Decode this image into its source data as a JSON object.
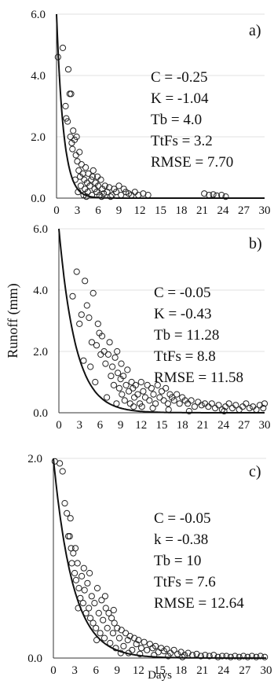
{
  "chart_data": [
    {
      "type": "scatter",
      "panel_label": "a)",
      "xlim": [
        0,
        30
      ],
      "ylim": [
        0,
        6
      ],
      "x_ticks": [
        "0",
        "3",
        "6",
        "9",
        "12",
        "15",
        "18",
        "21",
        "24",
        "27",
        "30"
      ],
      "y_ticks": [
        "0.0",
        "2.0",
        "4.0",
        "6.0"
      ],
      "ylabel": "",
      "xlabel": "",
      "annotations": [
        "C = -0.25",
        "K = -1.04",
        "Tb = 4.0",
        "TtFs = 3.2",
        "RMSE = 7.70"
      ],
      "curve": {
        "C": -0.25,
        "K": -1.04,
        "Tb": 4.0,
        "peak": 6.0
      },
      "observed_points": [
        [
          0.2,
          4.6
        ],
        [
          0.9,
          4.9
        ],
        [
          1.3,
          3.0
        ],
        [
          1.4,
          2.6
        ],
        [
          1.6,
          2.5
        ],
        [
          1.7,
          4.2
        ],
        [
          1.9,
          3.4
        ],
        [
          2.1,
          3.4
        ],
        [
          2.0,
          2.0
        ],
        [
          2.2,
          1.8
        ],
        [
          2.3,
          1.6
        ],
        [
          2.4,
          2.2
        ],
        [
          2.6,
          1.9
        ],
        [
          2.8,
          1.4
        ],
        [
          2.9,
          2.0
        ],
        [
          3.0,
          1.2
        ],
        [
          2.7,
          0.6
        ],
        [
          3.2,
          0.9
        ],
        [
          3.3,
          1.5
        ],
        [
          3.4,
          0.7
        ],
        [
          3.5,
          0.4
        ],
        [
          3.6,
          1.1
        ],
        [
          3.8,
          0.8
        ],
        [
          4.0,
          0.6
        ],
        [
          4.1,
          0.3
        ],
        [
          4.2,
          1.0
        ],
        [
          4.4,
          0.5
        ],
        [
          4.5,
          0.2
        ],
        [
          4.6,
          0.8
        ],
        [
          4.8,
          0.4
        ],
        [
          5.0,
          0.6
        ],
        [
          5.1,
          0.1
        ],
        [
          5.3,
          0.9
        ],
        [
          5.5,
          0.3
        ],
        [
          5.6,
          0.5
        ],
        [
          5.8,
          0.2
        ],
        [
          6.0,
          0.4
        ],
        [
          6.2,
          0.1
        ],
        [
          6.4,
          0.6
        ],
        [
          6.6,
          0.3
        ],
        [
          6.8,
          0.15
        ],
        [
          7.0,
          0.4
        ],
        [
          7.3,
          0.2
        ],
        [
          7.6,
          0.35
        ],
        [
          8.0,
          0.1
        ],
        [
          8.3,
          0.3
        ],
        [
          8.6,
          0.2
        ],
        [
          9.0,
          0.4
        ],
        [
          9.3,
          0.1
        ],
        [
          9.7,
          0.3
        ],
        [
          10.0,
          0.2
        ],
        [
          10.4,
          0.15
        ],
        [
          10.8,
          0.1
        ],
        [
          11.3,
          0.2
        ],
        [
          11.8,
          0.1
        ],
        [
          12.5,
          0.15
        ],
        [
          13.2,
          0.1
        ],
        [
          3.1,
          0.2
        ],
        [
          3.9,
          0.1
        ],
        [
          4.3,
          0.05
        ],
        [
          5.2,
          0.7
        ],
        [
          5.9,
          0.7
        ],
        [
          6.5,
          0.05
        ],
        [
          7.8,
          0.05
        ],
        [
          21.3,
          0.15
        ],
        [
          22.0,
          0.1
        ],
        [
          22.6,
          0.12
        ],
        [
          23.1,
          0.08
        ],
        [
          23.8,
          0.1
        ],
        [
          24.4,
          0.05
        ]
      ]
    },
    {
      "type": "scatter",
      "panel_label": "b)",
      "xlim": [
        0,
        30
      ],
      "ylim": [
        0,
        6
      ],
      "x_ticks": [
        "0",
        "3",
        "6",
        "9",
        "12",
        "15",
        "18",
        "21",
        "24",
        "27",
        "30"
      ],
      "y_ticks": [
        "0.0",
        "2.0",
        "4.0",
        "6.0"
      ],
      "ylabel": "Runoff (mm)",
      "xlabel": "",
      "annotations": [
        "C = -0.05",
        "K = -0.43",
        "Tb = 11.28",
        "TtFs = 8.8",
        "RMSE = 11.58"
      ],
      "curve": {
        "C": -0.05,
        "K": -0.43,
        "Tb": 11.28,
        "peak": 6.0
      },
      "observed_points": [
        [
          2.0,
          3.8
        ],
        [
          2.6,
          4.6
        ],
        [
          3.0,
          2.9
        ],
        [
          3.3,
          3.2
        ],
        [
          3.6,
          1.7
        ],
        [
          3.8,
          4.3
        ],
        [
          4.1,
          3.5
        ],
        [
          4.4,
          3.1
        ],
        [
          4.6,
          1.5
        ],
        [
          4.8,
          2.3
        ],
        [
          5.0,
          3.9
        ],
        [
          5.3,
          1.0
        ],
        [
          5.5,
          2.2
        ],
        [
          5.7,
          2.9
        ],
        [
          5.9,
          2.6
        ],
        [
          6.1,
          1.9
        ],
        [
          6.3,
          2.5
        ],
        [
          6.6,
          2.0
        ],
        [
          6.8,
          1.6
        ],
        [
          7.0,
          0.5
        ],
        [
          7.2,
          1.9
        ],
        [
          7.4,
          2.3
        ],
        [
          7.6,
          1.2
        ],
        [
          7.8,
          1.5
        ],
        [
          8.0,
          0.9
        ],
        [
          8.2,
          1.8
        ],
        [
          8.4,
          0.3
        ],
        [
          8.6,
          1.3
        ],
        [
          8.8,
          0.8
        ],
        [
          9.0,
          1.1
        ],
        [
          9.2,
          0.6
        ],
        [
          9.4,
          1.2
        ],
        [
          9.6,
          0.4
        ],
        [
          9.8,
          0.9
        ],
        [
          10.0,
          1.4
        ],
        [
          10.2,
          0.7
        ],
        [
          10.4,
          0.3
        ],
        [
          10.6,
          1.0
        ],
        [
          10.8,
          0.8
        ],
        [
          11.0,
          0.5
        ],
        [
          11.2,
          0.9
        ],
        [
          11.5,
          0.6
        ],
        [
          11.8,
          0.3
        ],
        [
          12.0,
          1.0
        ],
        [
          12.3,
          0.7
        ],
        [
          12.6,
          0.5
        ],
        [
          12.9,
          0.9
        ],
        [
          13.2,
          0.4
        ],
        [
          13.5,
          0.8
        ],
        [
          13.8,
          0.6
        ],
        [
          14.1,
          0.3
        ],
        [
          14.4,
          0.9
        ],
        [
          14.7,
          0.5
        ],
        [
          15.0,
          0.7
        ],
        [
          15.3,
          0.4
        ],
        [
          15.6,
          0.8
        ],
        [
          15.9,
          0.3
        ],
        [
          16.2,
          0.6
        ],
        [
          16.5,
          0.5
        ],
        [
          16.8,
          0.4
        ],
        [
          17.2,
          0.6
        ],
        [
          17.6,
          0.3
        ],
        [
          18.0,
          0.5
        ],
        [
          18.4,
          0.4
        ],
        [
          18.8,
          0.3
        ],
        [
          19.3,
          0.4
        ],
        [
          19.8,
          0.2
        ],
        [
          20.3,
          0.35
        ],
        [
          20.8,
          0.25
        ],
        [
          21.3,
          0.3
        ],
        [
          21.8,
          0.2
        ],
        [
          22.3,
          0.3
        ],
        [
          22.8,
          0.15
        ],
        [
          23.3,
          0.25
        ],
        [
          23.8,
          0.1
        ],
        [
          24.3,
          0.2
        ],
        [
          24.8,
          0.3
        ],
        [
          25.3,
          0.15
        ],
        [
          25.8,
          0.25
        ],
        [
          26.3,
          0.1
        ],
        [
          26.8,
          0.2
        ],
        [
          27.3,
          0.3
        ],
        [
          27.8,
          0.15
        ],
        [
          28.3,
          0.2
        ],
        [
          28.8,
          0.1
        ],
        [
          29.3,
          0.25
        ],
        [
          29.8,
          0.15
        ],
        [
          30.0,
          0.3
        ],
        [
          8.5,
          2.0
        ],
        [
          9.1,
          1.6
        ],
        [
          10.9,
          0.2
        ],
        [
          12.1,
          0.2
        ],
        [
          13.7,
          0.15
        ],
        [
          16.0,
          0.1
        ],
        [
          19.0,
          0.05
        ],
        [
          24.1,
          0.05
        ]
      ]
    },
    {
      "type": "scatter",
      "panel_label": "c)",
      "xlim": [
        0,
        30
      ],
      "ylim": [
        0,
        2
      ],
      "x_ticks": [
        "0",
        "3",
        "6",
        "9",
        "12",
        "15",
        "18",
        "21",
        "24",
        "27",
        "30"
      ],
      "y_ticks": [
        "0.0",
        "2.0"
      ],
      "ylabel": "",
      "xlabel": "Days",
      "annotations": [
        "C = -0.05",
        "k = -0.38",
        "Tb = 10",
        "TtFs = 7.6",
        "RMSE = 12.64"
      ],
      "curve": {
        "C": -0.05,
        "K": -0.38,
        "Tb": 10,
        "peak": 2.0
      },
      "observed_points": [
        [
          0.2,
          1.97
        ],
        [
          0.9,
          1.95
        ],
        [
          1.3,
          1.87
        ],
        [
          1.6,
          1.55
        ],
        [
          1.9,
          1.45
        ],
        [
          2.1,
          1.22
        ],
        [
          2.3,
          1.22
        ],
        [
          2.5,
          1.1
        ],
        [
          2.6,
          0.95
        ],
        [
          2.8,
          1.05
        ],
        [
          3.0,
          0.85
        ],
        [
          3.2,
          0.78
        ],
        [
          3.4,
          0.95
        ],
        [
          3.6,
          0.7
        ],
        [
          3.8,
          0.6
        ],
        [
          4.0,
          0.82
        ],
        [
          4.2,
          0.55
        ],
        [
          4.4,
          0.68
        ],
        [
          4.6,
          0.45
        ],
        [
          4.8,
          0.75
        ],
        [
          5.0,
          0.5
        ],
        [
          5.2,
          0.4
        ],
        [
          5.4,
          0.62
        ],
        [
          5.6,
          0.35
        ],
        [
          5.8,
          0.55
        ],
        [
          6.0,
          0.3
        ],
        [
          6.2,
          0.7
        ],
        [
          6.4,
          0.45
        ],
        [
          6.6,
          0.25
        ],
        [
          6.8,
          0.58
        ],
        [
          7.0,
          0.38
        ],
        [
          7.2,
          0.2
        ],
        [
          7.4,
          0.5
        ],
        [
          7.6,
          0.3
        ],
        [
          7.8,
          0.45
        ],
        [
          8.0,
          0.15
        ],
        [
          8.2,
          0.4
        ],
        [
          8.4,
          0.25
        ],
        [
          8.6,
          0.35
        ],
        [
          8.8,
          0.1
        ],
        [
          9.0,
          0.3
        ],
        [
          9.3,
          0.2
        ],
        [
          9.6,
          0.28
        ],
        [
          9.9,
          0.12
        ],
        [
          10.2,
          0.25
        ],
        [
          10.5,
          0.18
        ],
        [
          10.8,
          0.22
        ],
        [
          11.1,
          0.08
        ],
        [
          11.4,
          0.2
        ],
        [
          11.7,
          0.14
        ],
        [
          12.0,
          0.18
        ],
        [
          12.4,
          0.1
        ],
        [
          12.8,
          0.16
        ],
        [
          13.2,
          0.08
        ],
        [
          13.6,
          0.14
        ],
        [
          14.0,
          0.1
        ],
        [
          14.4,
          0.12
        ],
        [
          14.8,
          0.06
        ],
        [
          15.2,
          0.1
        ],
        [
          15.6,
          0.07
        ],
        [
          16.0,
          0.09
        ],
        [
          16.5,
          0.05
        ],
        [
          17.0,
          0.08
        ],
        [
          17.5,
          0.04
        ],
        [
          18.0,
          0.06
        ],
        [
          18.5,
          0.03
        ],
        [
          19.0,
          0.05
        ],
        [
          19.6,
          0.03
        ],
        [
          20.2,
          0.04
        ],
        [
          20.8,
          0.02
        ],
        [
          21.4,
          0.03
        ],
        [
          22.0,
          0.02
        ],
        [
          22.6,
          0.03
        ],
        [
          23.2,
          0.01
        ],
        [
          23.8,
          0.02
        ],
        [
          24.4,
          0.02
        ],
        [
          25.0,
          0.01
        ],
        [
          25.6,
          0.02
        ],
        [
          26.2,
          0.01
        ],
        [
          26.8,
          0.02
        ],
        [
          27.4,
          0.01
        ],
        [
          28.0,
          0.02
        ],
        [
          28.6,
          0.01
        ],
        [
          29.2,
          0.02
        ],
        [
          29.8,
          0.01
        ],
        [
          2.4,
          1.4
        ],
        [
          3.1,
          1.1
        ],
        [
          3.5,
          0.5
        ],
        [
          4.3,
          0.9
        ],
        [
          5.1,
          0.85
        ],
        [
          6.1,
          0.18
        ],
        [
          7.3,
          0.62
        ],
        [
          8.5,
          0.48
        ],
        [
          9.5,
          0.05
        ],
        [
          10.6,
          0.05
        ],
        [
          12.2,
          0.04
        ],
        [
          14.2,
          0.03
        ],
        [
          16.2,
          0.02
        ],
        [
          18.2,
          0.01
        ]
      ]
    }
  ]
}
